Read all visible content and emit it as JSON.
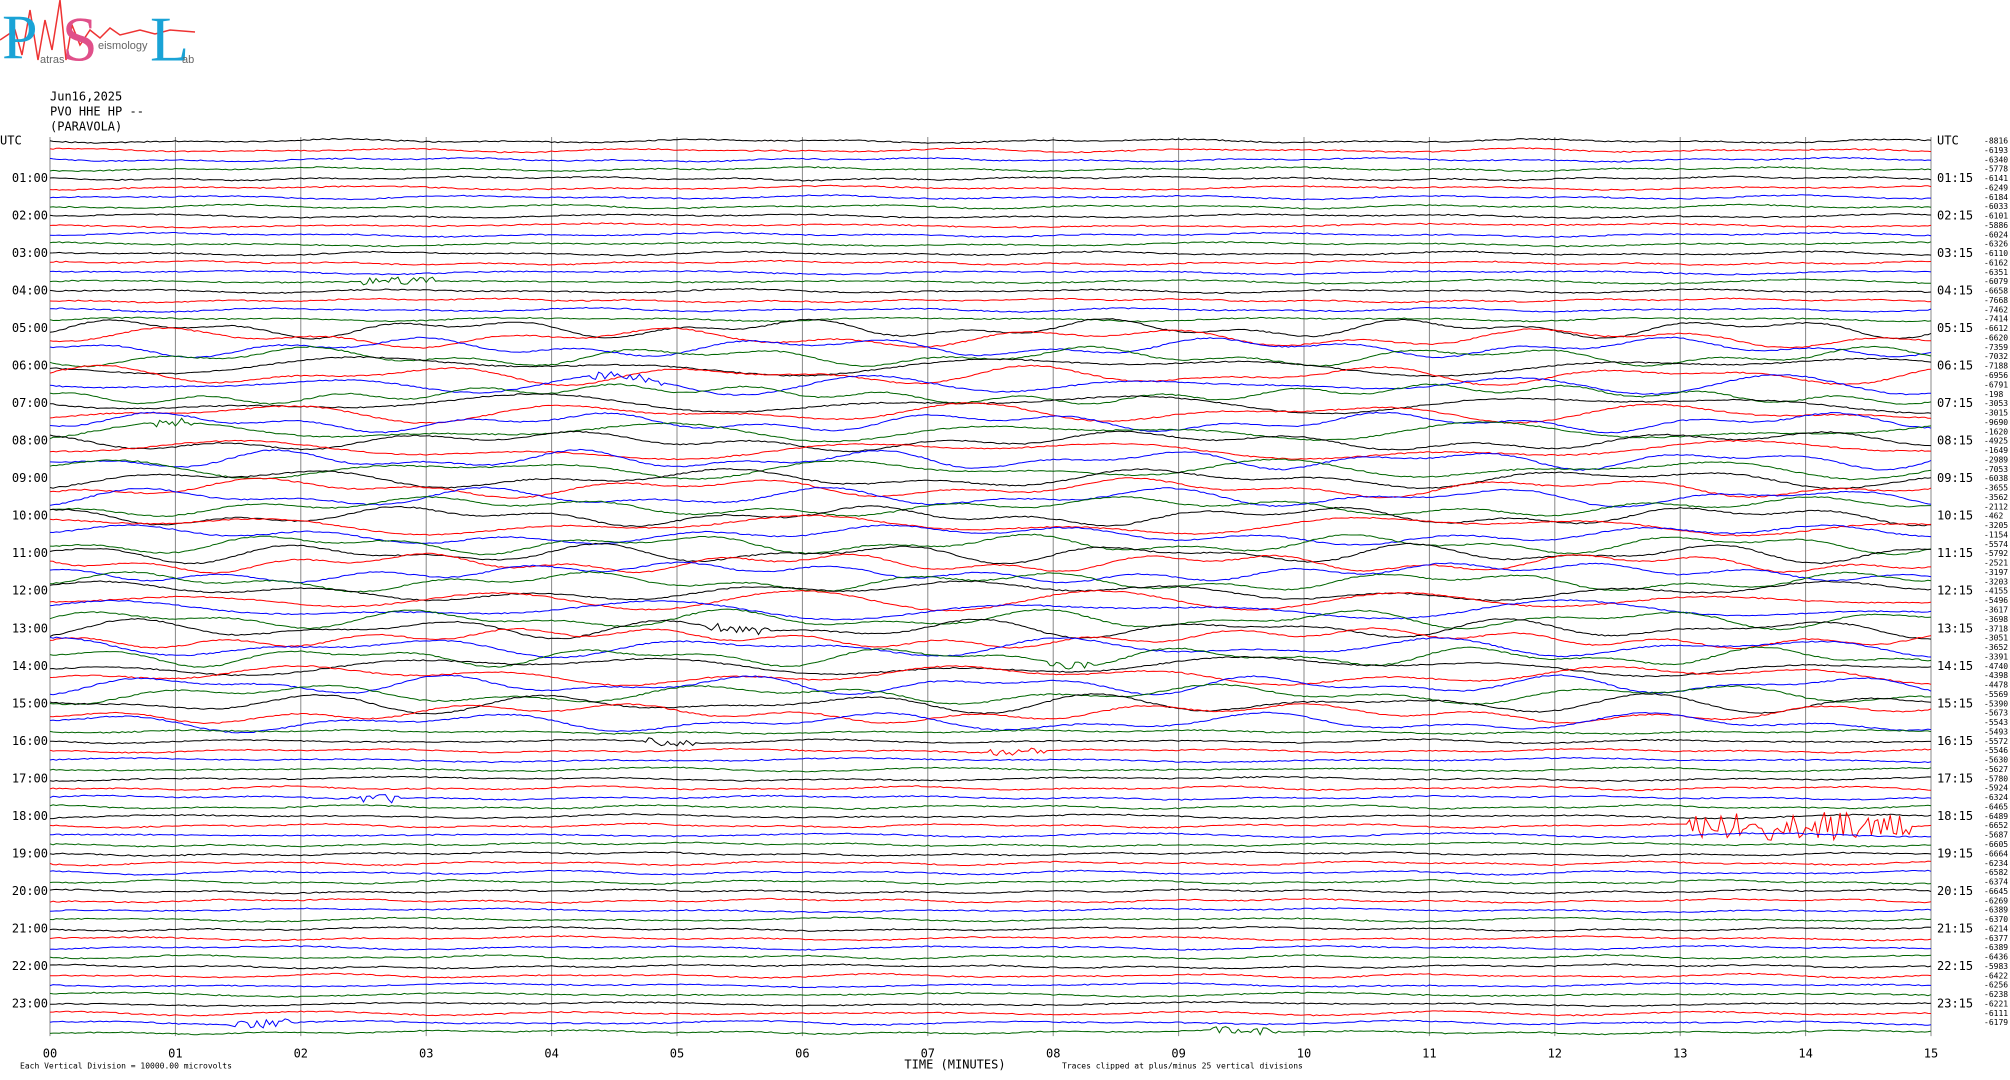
{
  "header": {
    "logo": {
      "letters": [
        "P",
        "S",
        "L"
      ],
      "words": [
        "atras",
        "eismology",
        "ab"
      ]
    },
    "date": "Jun16,2025",
    "station": "PVO HHE HP --",
    "location": "(PARAVOLA)"
  },
  "left_labels": [
    "UTC",
    "01:00",
    "02:00",
    "03:00",
    "04:00",
    "05:00",
    "06:00",
    "07:00",
    "08:00",
    "09:00",
    "10:00",
    "11:00",
    "12:00",
    "13:00",
    "14:00",
    "15:00",
    "16:00",
    "17:00",
    "18:00",
    "19:00",
    "20:00",
    "21:00",
    "22:00",
    "23:00"
  ],
  "right_labels": [
    "UTC",
    "01:15",
    "02:15",
    "03:15",
    "04:15",
    "05:15",
    "06:15",
    "07:15",
    "08:15",
    "09:15",
    "10:15",
    "11:15",
    "12:15",
    "13:15",
    "14:15",
    "15:15",
    "16:15",
    "17:15",
    "18:15",
    "19:15",
    "20:15",
    "21:15",
    "22:15",
    "23:15"
  ],
  "trace_offsets": [
    -8816,
    -6193,
    -6340,
    -5778,
    -6141,
    -6249,
    -6184,
    -6033,
    -6101,
    -5886,
    -6024,
    -6326,
    -6110,
    -6162,
    -6351,
    -6079,
    -6658,
    -7668,
    -7462,
    -7414,
    -6612,
    -6620,
    -7359,
    -7032,
    -7188,
    -6956,
    -6791,
    -198,
    -3053,
    -3015,
    -9690,
    -1620,
    -4925,
    -1649,
    -2989,
    -7053,
    -6038,
    -3655,
    -3562,
    -2112,
    -462,
    -3205,
    -1154,
    -5574,
    -5792,
    -2521,
    -3197,
    -3203,
    -4155,
    -5496,
    -3617,
    -3698,
    -3718,
    -3051,
    -3652,
    -3391,
    -4740,
    -4398,
    -4478,
    -5569,
    -5390,
    -5673,
    -5543,
    -5493,
    -5572,
    -5546,
    -5630,
    -5627,
    -5780,
    -5924,
    -6324,
    -6465,
    -6489,
    -6652,
    -5687,
    -6605,
    -6664,
    -6234,
    -6582,
    -6374,
    -6645,
    -6269,
    -6389,
    -6370,
    -6214,
    -6377,
    -6389,
    -6436,
    -5983,
    -6422,
    -6256,
    -6238,
    -6221,
    -6111,
    -6179
  ],
  "x_axis": {
    "ticks": [
      "00",
      "01",
      "02",
      "03",
      "04",
      "05",
      "06",
      "07",
      "08",
      "09",
      "10",
      "11",
      "12",
      "13",
      "14",
      "15"
    ],
    "label": "TIME (MINUTES)"
  },
  "footer": {
    "scale_note": "Each Vertical Division = 10000.00 microvolts",
    "clip_note": "Traces clipped at plus/minus 25 vertical divisions"
  }
}
